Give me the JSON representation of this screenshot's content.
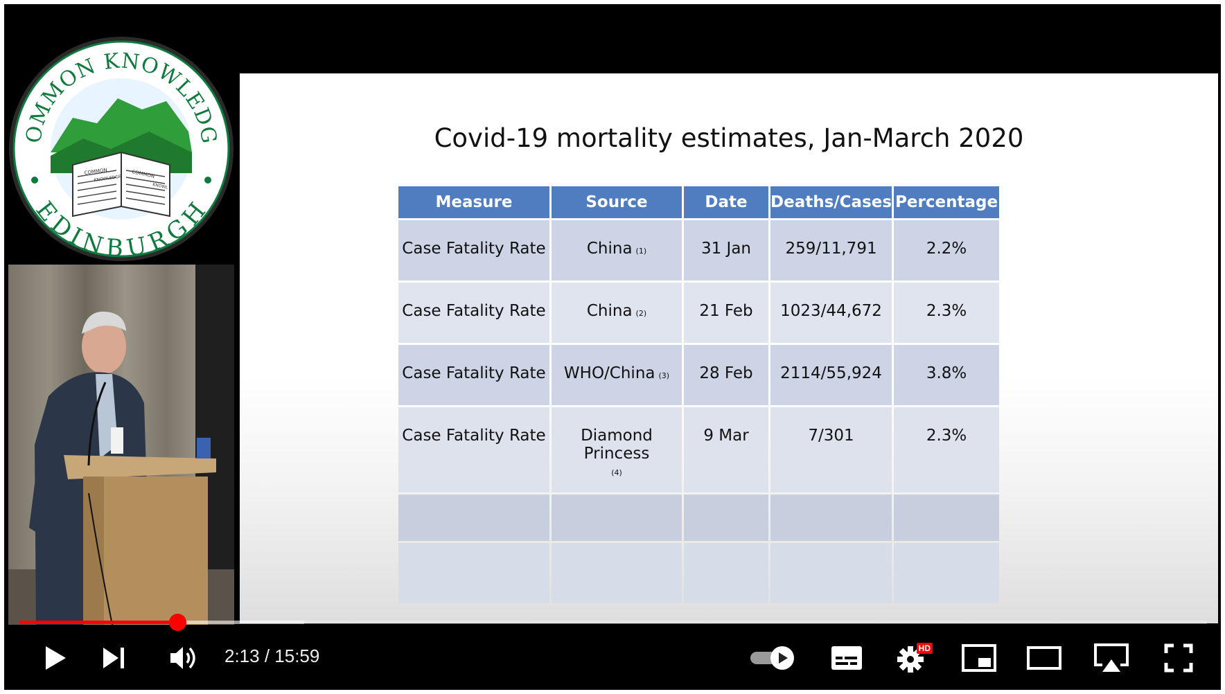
{
  "logo": {
    "top_text": "COMMON KNOWLEDGE",
    "bottom_text": "EDINBURGH",
    "book_left_top": "COMMON",
    "book_left_bottom": "KNOWLEDGE",
    "book_right_top": "COMMON",
    "book_right_bottom": "KNOWL"
  },
  "slide": {
    "title": "Covid-19 mortality estimates, Jan-March 2020",
    "columns": [
      "Measure",
      "Source",
      "Date",
      "Deaths/Cases",
      "Percentage"
    ],
    "rows": [
      {
        "measure": "Case Fatality Rate",
        "source": "China",
        "ref": "(1)",
        "date": "31 Jan",
        "deaths_cases": "259/11,791",
        "percentage": "2.2%"
      },
      {
        "measure": "Case Fatality Rate",
        "source": "China",
        "ref": "(2)",
        "date": "21 Feb",
        "deaths_cases": "1023/44,672",
        "percentage": "2.3%"
      },
      {
        "measure": "Case Fatality Rate",
        "source": "WHO/China",
        "ref": "(3)",
        "date": "28 Feb",
        "deaths_cases": "2114/55,924",
        "percentage": "3.8%"
      },
      {
        "measure": "Case Fatality Rate",
        "source": "Diamond Princess",
        "ref": "(4)",
        "date": "9 Mar",
        "deaths_cases": "7/301",
        "percentage": "2.3%"
      }
    ]
  },
  "player": {
    "current_time": "2:13",
    "duration": "15:59",
    "time_display": "2:13 / 15:59",
    "progress_played": 0.133,
    "progress_buffered": 0.24,
    "hd_badge": "HD",
    "colors": {
      "progress": "#ff0000",
      "table_header": "#4f7dc0"
    },
    "controls": {
      "play": "play-icon",
      "next": "skip-next-icon",
      "volume": "volume-icon",
      "autoplay": "autoplay-toggle-icon",
      "subtitles": "subtitles-icon",
      "settings": "gear-icon",
      "miniplayer": "miniplayer-icon",
      "theater": "theater-mode-icon",
      "airplay": "airplay-icon",
      "fullscreen": "fullscreen-icon"
    }
  }
}
